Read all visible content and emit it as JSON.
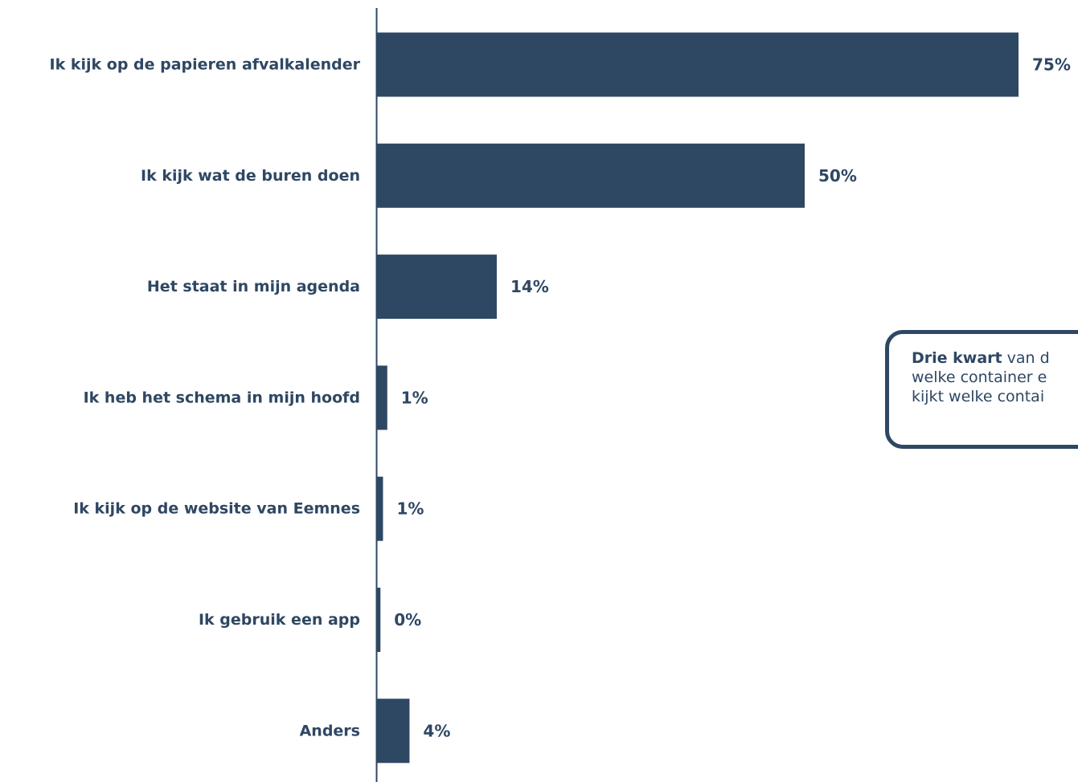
{
  "colors": {
    "bar": "#2e4763",
    "text": "#2e4763",
    "axis": "#2e4763"
  },
  "chart_data": {
    "type": "bar",
    "orientation": "horizontal",
    "categories": [
      "Ik kijk op de papieren afvalkalender",
      "Ik kijk wat de buren doen",
      "Het staat in mijn agenda",
      "Ik heb het schema in mijn hoofd",
      "Ik kijk op de website van Eemnes",
      "Ik gebruik een app",
      "Anders"
    ],
    "values": [
      75,
      50,
      14,
      1.2,
      0.7,
      0.4,
      3.8
    ],
    "value_labels": [
      "75%",
      "50%",
      "14%",
      "1%",
      "1%",
      "0%",
      "4%"
    ],
    "xlim": [
      0,
      75
    ],
    "grid": false,
    "legend": "none"
  },
  "callout": {
    "bold": "Drie kwart",
    "line1_rest": " van d",
    "line2": "welke container e",
    "line3": "kijkt welke contai"
  }
}
